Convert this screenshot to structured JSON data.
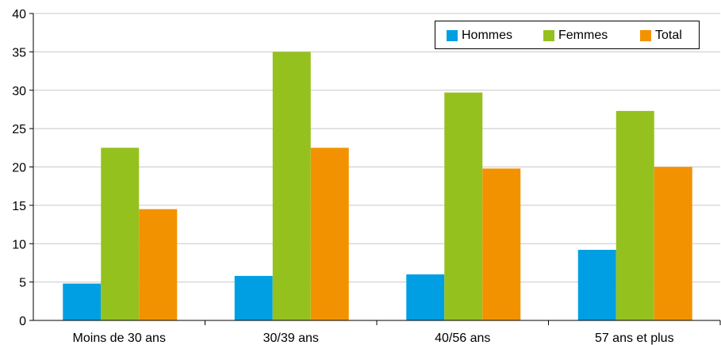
{
  "chart_data": {
    "type": "bar",
    "categories": [
      "Moins de 30 ans",
      "30/39 ans",
      "40/56 ans",
      "57 ans et plus"
    ],
    "series": [
      {
        "name": "Hommes",
        "color": "#009fe3",
        "values": [
          4.8,
          5.8,
          6.0,
          9.2
        ]
      },
      {
        "name": "Femmes",
        "color": "#95c11f",
        "values": [
          22.5,
          35.0,
          29.7,
          27.3
        ]
      },
      {
        "name": "Total",
        "color": "#f39200",
        "values": [
          14.5,
          22.5,
          19.8,
          20.0
        ]
      }
    ],
    "ylim": [
      0,
      40
    ],
    "yticks": [
      "0",
      "5",
      "10",
      "15",
      "20",
      "25",
      "30",
      "35",
      "40"
    ],
    "grid": true,
    "legend_position": "top-right",
    "title": "",
    "xlabel": "",
    "ylabel": ""
  }
}
